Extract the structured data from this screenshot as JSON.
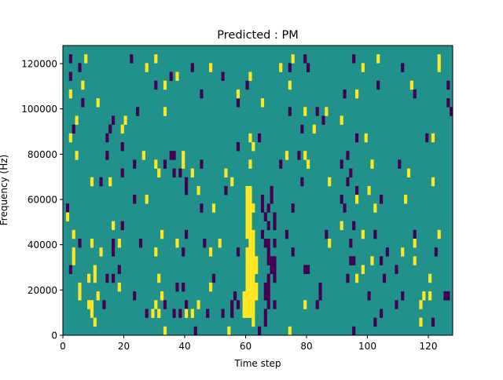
{
  "chart_data": {
    "type": "heatmap",
    "title": "Predicted : PM",
    "xlabel": "Time step",
    "ylabel": "Frequency (Hz)",
    "xlim": [
      0,
      128
    ],
    "ylim": [
      0,
      128000
    ],
    "xticks": [
      0,
      20,
      40,
      60,
      80,
      100,
      120
    ],
    "yticks": [
      0,
      20000,
      40000,
      60000,
      80000,
      100000,
      120000
    ],
    "n_time_steps": 128,
    "n_freq_bins": 33,
    "colors": {
      "background": "#21918c",
      "low": "#440154",
      "high": "#fde725"
    },
    "rows_order": "highest frequency bin first",
    "low_cells_by_row": [
      [],
      [
        2,
        22,
        79,
        95
      ],
      [
        5,
        42,
        74,
        80,
        111
      ],
      [
        2,
        35,
        52
      ],
      [
        30,
        60,
        103,
        126
      ],
      [
        45,
        92,
        115
      ],
      [
        6,
        57,
        126
      ],
      [
        24,
        74,
        83,
        127
      ],
      [
        16,
        85
      ],
      [
        3,
        15,
        78
      ],
      [
        14,
        64,
        96,
        119
      ],
      [
        19,
        57
      ],
      [
        14,
        35,
        36,
        77,
        93
      ],
      [
        23,
        33,
        45,
        71,
        91,
        110
      ],
      [
        19,
        36,
        38,
        94
      ],
      [
        12,
        40,
        78,
        93
      ],
      [
        40,
        53,
        68,
        96
      ],
      [
        23,
        65,
        68,
        91,
        104
      ],
      [
        1,
        45,
        65,
        67,
        75,
        92
      ],
      [
        66,
        69
      ],
      [
        19,
        67,
        69,
        95
      ],
      [
        40,
        65,
        73,
        86,
        102,
        115
      ],
      [
        5,
        16,
        25,
        46,
        66,
        67,
        69,
        94
      ],
      [
        16,
        39,
        57,
        67,
        75,
        106,
        122
      ],
      [
        67,
        68,
        69,
        94,
        95,
        104
      ],
      [
        2,
        18,
        68,
        69,
        79,
        80,
        109
      ],
      [
        14,
        16,
        49,
        67,
        69,
        93,
        105
      ],
      [
        37,
        39,
        66,
        67,
        84
      ],
      [
        23,
        56,
        66,
        67,
        84,
        100,
        111,
        125,
        126
      ],
      [
        13,
        33,
        40,
        55,
        57,
        67,
        69,
        83,
        109
      ],
      [
        27,
        36,
        38,
        47,
        52,
        55,
        66,
        104
      ],
      [
        66,
        102,
        121
      ],
      [
        43,
        64,
        95
      ]
    ],
    "high_cells_by_row": [
      [],
      [
        7,
        30,
        75,
        103,
        123
      ],
      [
        27,
        48,
        71,
        98,
        123
      ],
      [
        37,
        61
      ],
      [
        6,
        33,
        74,
        114
      ],
      [
        2,
        57,
        96
      ],
      [
        11,
        65
      ],
      [
        33,
        79,
        86
      ],
      [
        4,
        20,
        91
      ],
      [
        19,
        82
      ],
      [
        2,
        61,
        99,
        121
      ],
      [
        62
      ],
      [
        4,
        26,
        39,
        73,
        79
      ],
      [
        30,
        39,
        61,
        80,
        101
      ],
      [
        31,
        42,
        53,
        113
      ],
      [
        9,
        15,
        55,
        87,
        121
      ],
      [
        44,
        60,
        61,
        100
      ],
      [
        27,
        60,
        61,
        96,
        112
      ],
      [
        49,
        60,
        61,
        62,
        102
      ],
      [
        1,
        60,
        61
      ],
      [
        16,
        60,
        61,
        91
      ],
      [
        3,
        32,
        60,
        61,
        62,
        98,
        123
      ],
      [
        9,
        18,
        37,
        51,
        61,
        62,
        87,
        115
      ],
      [
        3,
        12,
        30,
        48,
        60,
        61,
        62,
        111
      ],
      [
        3,
        60,
        61,
        62,
        63,
        101,
        115
      ],
      [
        10,
        60,
        61,
        62,
        63,
        98
      ],
      [
        8,
        10,
        31,
        60,
        61,
        62,
        96,
        120
      ],
      [
        5,
        18,
        48,
        60,
        61,
        62,
        63
      ],
      [
        5,
        11,
        32,
        59,
        60,
        61,
        62,
        63,
        118,
        120
      ],
      [
        8,
        9,
        30,
        44,
        59,
        60,
        61,
        62,
        79,
        117
      ],
      [
        9,
        29,
        31,
        40,
        42,
        59,
        60,
        61,
        62
      ],
      [
        10,
        62,
        117
      ],
      [
        33,
        54,
        74
      ]
    ]
  }
}
